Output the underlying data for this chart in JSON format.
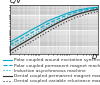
{
  "title": "C/V",
  "xlabel": "D",
  "plot_bg": "#c8c8c8",
  "fig_bg": "#ffffff",
  "grid_color": "#ffffff",
  "curves": [
    {
      "label": "Polar coupled wound excitation synchronous machine",
      "color": "#00aacc",
      "linestyle": "-",
      "linewidth": 0.8,
      "x": [
        0.01,
        0.02,
        0.05,
        0.1,
        0.2,
        0.5,
        1.0,
        2.0,
        5.0,
        10.0
      ],
      "y": [
        0.018,
        0.038,
        0.1,
        0.2,
        0.4,
        0.8,
        1.3,
        1.9,
        2.6,
        2.9
      ]
    },
    {
      "label": "Polar coupled permanent magnet machine",
      "color": "#00aacc",
      "linestyle": "--",
      "linewidth": 0.8,
      "x": [
        0.01,
        0.02,
        0.05,
        0.1,
        0.2,
        0.5,
        1.0,
        2.0,
        5.0,
        10.0
      ],
      "y": [
        0.012,
        0.025,
        0.065,
        0.13,
        0.27,
        0.6,
        1.0,
        1.55,
        2.2,
        2.6
      ]
    },
    {
      "label": "Induction asynchronous machine",
      "color": "#00aacc",
      "linestyle": ":",
      "linewidth": 0.8,
      "x": [
        0.01,
        0.02,
        0.05,
        0.1,
        0.2,
        0.5,
        1.0,
        2.0,
        5.0,
        10.0
      ],
      "y": [
        0.008,
        0.016,
        0.042,
        0.087,
        0.18,
        0.43,
        0.75,
        1.15,
        1.7,
        2.1
      ]
    },
    {
      "label": "Dental coupled permanent magnet machine",
      "color": "#333333",
      "linestyle": "-",
      "linewidth": 0.9,
      "x": [
        0.01,
        0.02,
        0.05,
        0.1,
        0.2,
        0.5,
        1.0,
        2.0,
        5.0,
        10.0
      ],
      "y": [
        0.005,
        0.011,
        0.03,
        0.065,
        0.14,
        0.35,
        0.65,
        1.05,
        1.7,
        2.2
      ]
    },
    {
      "label": "Dental coupled variable reluctance machine",
      "color": "#333333",
      "linestyle": ":",
      "linewidth": 0.8,
      "x": [
        0.01,
        0.02,
        0.05,
        0.1,
        0.2,
        0.5,
        1.0,
        2.0,
        5.0,
        10.0
      ],
      "y": [
        0.003,
        0.007,
        0.018,
        0.04,
        0.085,
        0.22,
        0.42,
        0.72,
        1.2,
        1.6
      ]
    }
  ],
  "xlim": [
    0.01,
    10.0
  ],
  "ylim": [
    0.003,
    4.0
  ],
  "legend_fontsize": 3.2,
  "title_fontsize": 5,
  "tick_fontsize": 3.5,
  "legend_line_colors": [
    "#00aacc",
    "#00aacc",
    "#00aacc",
    "#333333",
    "#333333"
  ],
  "legend_linestyles": [
    "-",
    "--",
    ":",
    "-",
    ":"
  ]
}
